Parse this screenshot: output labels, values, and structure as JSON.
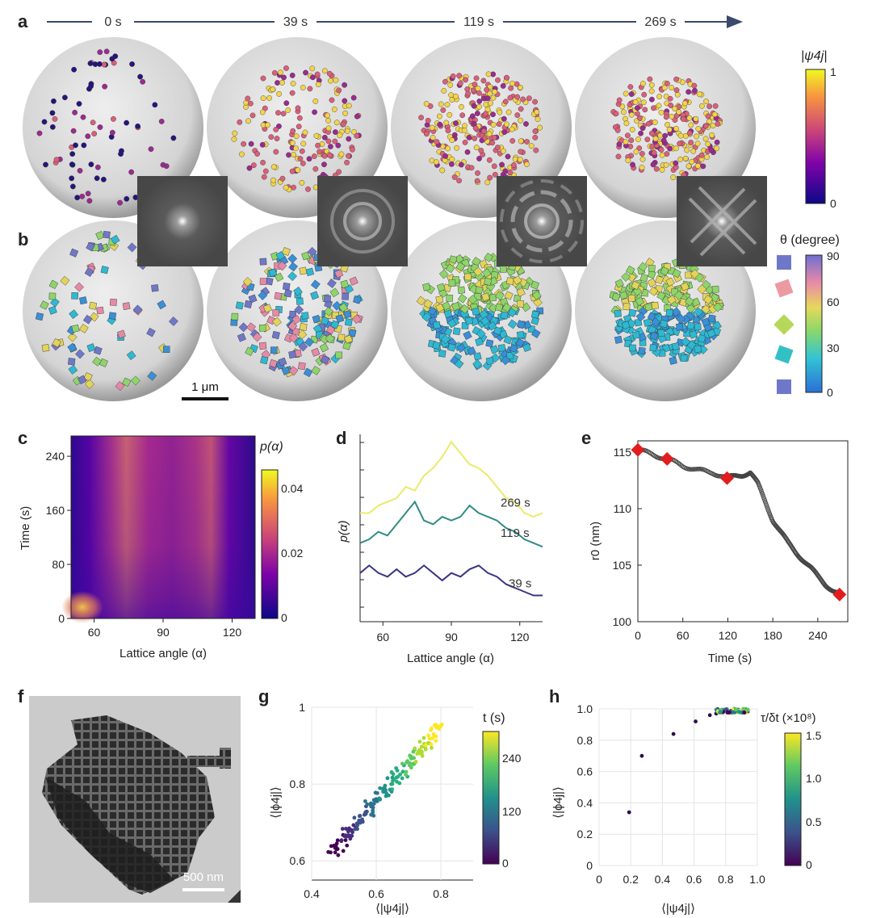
{
  "panel_labels": {
    "a": "a",
    "b": "b",
    "c": "c",
    "d": "d",
    "e": "e",
    "f": "f",
    "g": "g",
    "h": "h"
  },
  "panel_a": {
    "time_labels": [
      "0 s",
      "39 s",
      "119 s",
      "269 s"
    ],
    "colorbar_title": "|ψ4j|",
    "colorbar_ticks": [
      "1",
      "0"
    ],
    "colors": {
      "high": "#f9e547",
      "low": "#140b6e"
    }
  },
  "panel_b": {
    "colorbar_title": "θ (degree)",
    "colorbar_ticks": [
      "90",
      "60",
      "30",
      "0"
    ],
    "scale_bar_label": "1 μm"
  },
  "chart_data": [
    {
      "id": "c",
      "type": "heatmap",
      "xlabel": "Lattice angle (α)",
      "ylabel": "Time (s)",
      "x_ticks": [
        "60",
        "90",
        "120"
      ],
      "y_ticks": [
        "0",
        "80",
        "160",
        "240"
      ],
      "xlim": [
        50,
        130
      ],
      "ylim": [
        0,
        270
      ],
      "colorbar_label": "p(α)",
      "colorbar_ticks": [
        "0.04",
        "0.02",
        "0"
      ]
    },
    {
      "id": "d",
      "type": "line",
      "xlabel": "Lattice angle (α)",
      "ylabel": "p(α)",
      "x_ticks": [
        "60",
        "90",
        "120"
      ],
      "xlim": [
        50,
        130
      ],
      "x": [
        50,
        54,
        58,
        62,
        66,
        70,
        74,
        78,
        82,
        86,
        90,
        94,
        98,
        102,
        106,
        110,
        114,
        118,
        122,
        126,
        130
      ],
      "series": [
        {
          "name": "269 s",
          "color": "#ecea6a",
          "values": [
            0.58,
            0.58,
            0.62,
            0.64,
            0.66,
            0.72,
            0.7,
            0.78,
            0.82,
            0.88,
            0.96,
            0.9,
            0.84,
            0.82,
            0.78,
            0.72,
            0.66,
            0.64,
            0.58,
            0.56,
            0.58
          ]
        },
        {
          "name": "119 s",
          "color": "#2f8c86",
          "values": [
            0.42,
            0.44,
            0.48,
            0.46,
            0.52,
            0.58,
            0.64,
            0.54,
            0.52,
            0.56,
            0.54,
            0.56,
            0.62,
            0.58,
            0.56,
            0.54,
            0.5,
            0.48,
            0.44,
            0.42,
            0.4
          ]
        },
        {
          "name": "39 s",
          "color": "#3b3584",
          "values": [
            0.26,
            0.3,
            0.26,
            0.24,
            0.28,
            0.24,
            0.26,
            0.3,
            0.26,
            0.22,
            0.26,
            0.24,
            0.28,
            0.3,
            0.26,
            0.24,
            0.2,
            0.18,
            0.16,
            0.14,
            0.14
          ]
        }
      ]
    },
    {
      "id": "e",
      "type": "scatter",
      "xlabel": "Time (s)",
      "ylabel": "r0 (nm)",
      "x_ticks": [
        "0",
        "60",
        "120",
        "180",
        "240"
      ],
      "y_ticks": [
        "100",
        "105",
        "110",
        "115"
      ],
      "xlim": [
        0,
        280
      ],
      "ylim": [
        100,
        116
      ],
      "curve_x": [
        0,
        20,
        39,
        60,
        80,
        100,
        119,
        130,
        140,
        150,
        160,
        170,
        180,
        190,
        200,
        210,
        220,
        230,
        240,
        250,
        260,
        269
      ],
      "curve_y": [
        115.2,
        114.8,
        114.4,
        113.8,
        113.4,
        113.2,
        112.7,
        112.9,
        113.0,
        113.2,
        112.2,
        110.6,
        109.0,
        108.0,
        107.0,
        106.2,
        105.5,
        104.8,
        104.0,
        103.3,
        102.8,
        102.4
      ],
      "highlight_x": [
        0,
        39,
        119,
        269
      ],
      "highlight_y": [
        115.2,
        114.4,
        112.7,
        102.4
      ],
      "highlight_color": "#e21d1d"
    },
    {
      "id": "g",
      "type": "scatter",
      "xlabel": "⟨|ψ4j|⟩",
      "ylabel": "⟨|ϕ4j|⟩",
      "x_ticks": [
        "0.4",
        "0.6",
        "0.8"
      ],
      "y_ticks": [
        "0.6",
        "0.8",
        "1"
      ],
      "xlim": [
        0.4,
        0.9
      ],
      "ylim": [
        0.55,
        1.0
      ],
      "colorbar_label": "t (s)",
      "colorbar_ticks": [
        "240",
        "120",
        "0"
      ]
    },
    {
      "id": "h",
      "type": "scatter",
      "xlabel": "⟨|ψ4j|⟩",
      "ylabel": "⟨|ϕ4j|⟩",
      "x_ticks": [
        "0",
        "0.2",
        "0.4",
        "0.6",
        "0.8",
        "1.0"
      ],
      "y_ticks": [
        "0",
        "0.2",
        "0.4",
        "0.6",
        "0.8",
        "1.0"
      ],
      "xlim": [
        0,
        1.0
      ],
      "ylim": [
        0,
        1.0
      ],
      "colorbar_label": "τ/δt (×10⁸)",
      "colorbar_ticks": [
        "1.5",
        "1.0",
        "0.5",
        "0"
      ],
      "points_x": [
        0.19,
        0.27,
        0.47,
        0.61,
        0.7,
        0.74
      ],
      "points_y": [
        0.34,
        0.7,
        0.84,
        0.92,
        0.96,
        0.97
      ]
    }
  ],
  "panel_f": {
    "scale_bar_label": "500 nm"
  }
}
